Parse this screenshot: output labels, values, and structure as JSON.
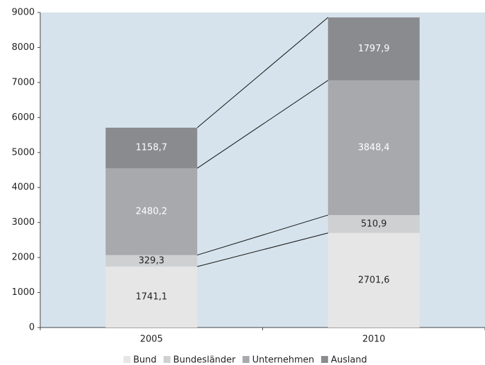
{
  "chart_data": {
    "type": "stacked_bar",
    "categories": [
      "2005",
      "2010"
    ],
    "series": [
      {
        "name": "Bund",
        "color": "#e6e6e7",
        "label_color": "#222222",
        "values": [
          1741.1,
          2701.6
        ],
        "value_labels": [
          "1741,1",
          "2701,6"
        ]
      },
      {
        "name": "Bundesländer",
        "color": "#cfd0d2",
        "label_color": "#222222",
        "values": [
          329.3,
          510.9
        ],
        "value_labels": [
          "329,3",
          "510,9"
        ]
      },
      {
        "name": "Unternehmen",
        "color": "#a8a9ad",
        "label_color": "#ffffff",
        "values": [
          2480.2,
          3848.4
        ],
        "value_labels": [
          "2480,2",
          "3848,4"
        ]
      },
      {
        "name": "Ausland",
        "color": "#8a8b8f",
        "label_color": "#ffffff",
        "values": [
          1158.7,
          1797.9
        ],
        "value_labels": [
          "1158,7",
          "1797,9"
        ]
      }
    ],
    "ylim": [
      0,
      9000
    ],
    "yticks": [
      0,
      1000,
      2000,
      3000,
      4000,
      5000,
      6000,
      7000,
      8000,
      9000
    ],
    "background": "#d6e3ec",
    "legend": "bottom"
  }
}
